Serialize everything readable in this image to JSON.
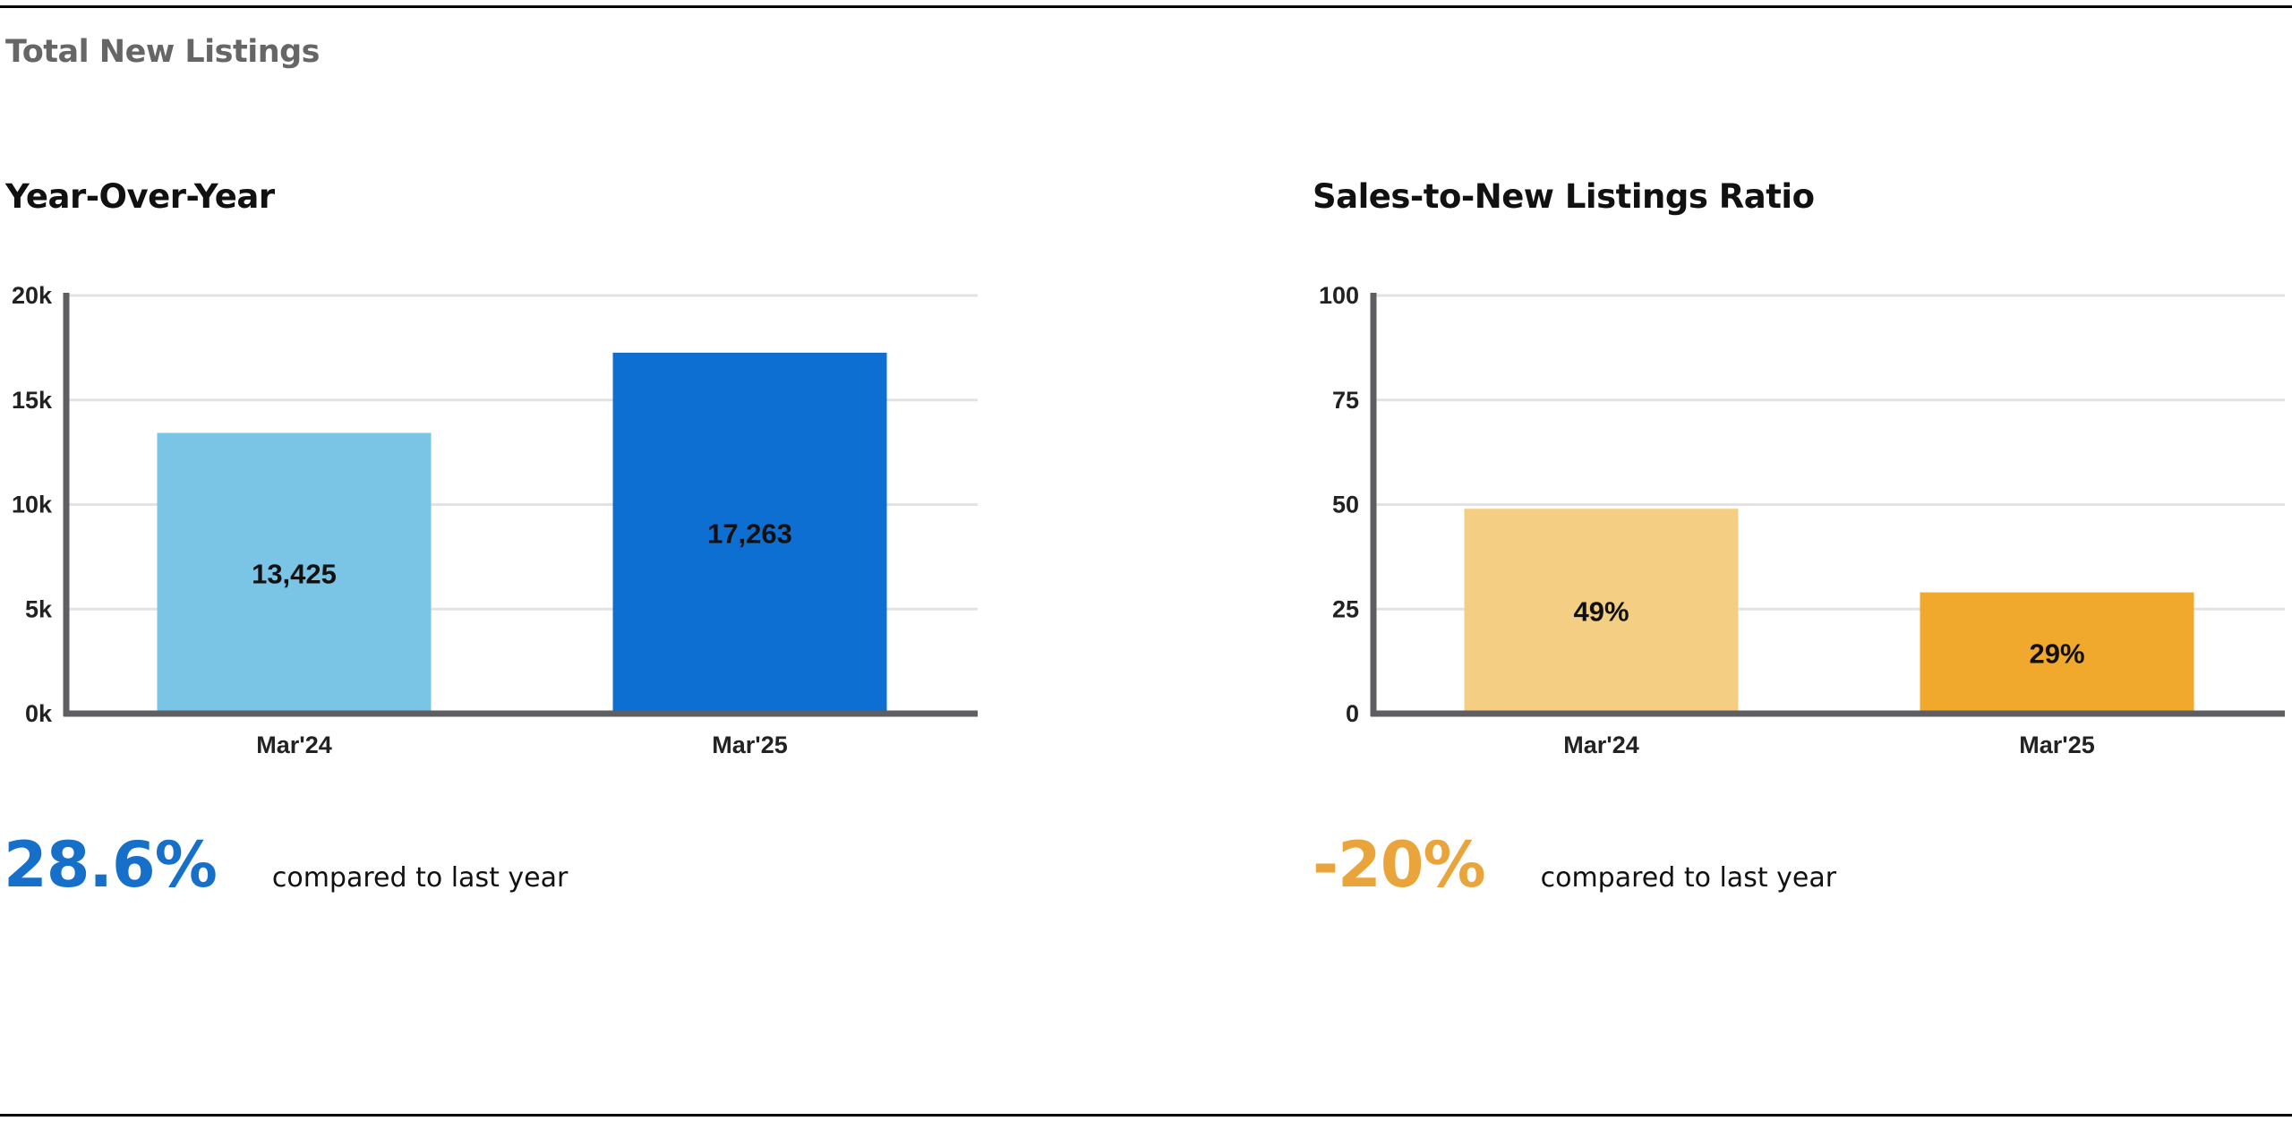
{
  "section": {
    "title": "Total New Listings"
  },
  "panels": [
    {
      "title": "Year-Over-Year",
      "stat": {
        "value": "28.6%",
        "caption": "compared to last year",
        "color": "#1670C9"
      }
    },
    {
      "title": "Sales-to-New Listings Ratio",
      "stat": {
        "value": "-20%",
        "caption": "compared to last year",
        "color": "#E9A53C"
      }
    }
  ],
  "chart_data": [
    {
      "type": "bar",
      "categories": [
        "Mar'24",
        "Mar'25"
      ],
      "values": [
        13425,
        17263
      ],
      "value_labels": [
        "13,425",
        "17,263"
      ],
      "bar_colors": [
        "#7AC4E6",
        "#0D6FD1"
      ],
      "ylim": [
        0,
        20000
      ],
      "yticks": [
        0,
        5000,
        10000,
        15000,
        20000
      ],
      "ytick_labels": [
        "0k",
        "5k",
        "10k",
        "15k",
        "20k"
      ],
      "grid": true
    },
    {
      "type": "bar",
      "categories": [
        "Mar'24",
        "Mar'25"
      ],
      "values": [
        49,
        29
      ],
      "value_labels": [
        "49%",
        "29%"
      ],
      "bar_colors": [
        "#F4CF83",
        "#F0A82D"
      ],
      "ylim": [
        0,
        100
      ],
      "yticks": [
        0,
        25,
        50,
        75,
        100
      ],
      "ytick_labels": [
        "0",
        "25",
        "50",
        "75",
        "100"
      ],
      "grid": true
    }
  ]
}
